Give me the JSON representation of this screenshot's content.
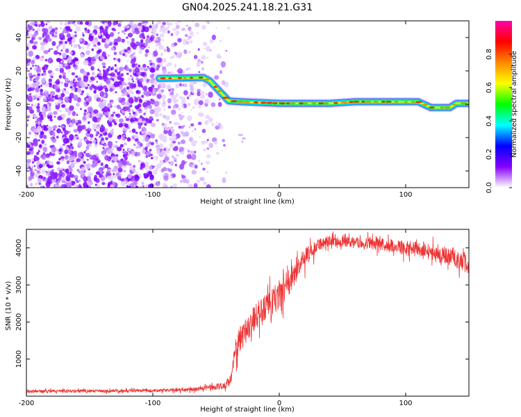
{
  "figure_title": "GN04.2025.241.18.21.G31",
  "chart_data": [
    {
      "type": "heatmap",
      "title": "GN04.2025.241.18.21.G31",
      "xlabel": "Height of straight line (km)",
      "ylabel": "Frequency (Hz)",
      "xlim": [
        -200,
        150
      ],
      "ylim": [
        -50,
        50
      ],
      "x_ticks": [
        -200,
        -100,
        0,
        100
      ],
      "x_tick_labels": [
        "-200",
        "-100",
        "0",
        "100"
      ],
      "y_ticks": [
        40,
        20,
        0,
        -20,
        -40
      ],
      "y_tick_labels": [
        "40",
        "20",
        "0",
        "-20",
        "-40"
      ],
      "noise_region_x": [
        -200,
        -50
      ],
      "ridge": [
        {
          "x": -95,
          "f": 15.5
        },
        {
          "x": -60,
          "f": 16
        },
        {
          "x": -55,
          "f": 14
        },
        {
          "x": -45,
          "f": 6
        },
        {
          "x": -40,
          "f": 2
        },
        {
          "x": -30,
          "f": 1.5
        },
        {
          "x": 0,
          "f": 0.5
        },
        {
          "x": 40,
          "f": 0.5
        },
        {
          "x": 60,
          "f": 1.5
        },
        {
          "x": 110,
          "f": 1.5
        },
        {
          "x": 120,
          "f": -2
        },
        {
          "x": 135,
          "f": -2
        },
        {
          "x": 140,
          "f": 0.5
        },
        {
          "x": 150,
          "f": 0.5
        }
      ],
      "colorbar": {
        "label": "Normalized spectral amplitude",
        "range": [
          0,
          1
        ],
        "ticks": [
          0.0,
          0.2,
          0.4,
          0.6,
          0.8
        ],
        "tick_labels": [
          "0.0",
          "0.2",
          "0.4",
          "0.6",
          "0.8"
        ],
        "colors": [
          "#ffffff",
          "#8800ff",
          "#0000ff",
          "#00ffff",
          "#00ff00",
          "#ffff00",
          "#ff8800",
          "#ff0000",
          "#ff00aa"
        ]
      }
    },
    {
      "type": "line",
      "xlabel": "Height of straight line (km)",
      "ylabel": "SNR (10 * v/v)",
      "xlim": [
        -200,
        150
      ],
      "ylim": [
        0,
        4500
      ],
      "x_ticks": [
        -200,
        -100,
        0,
        100
      ],
      "x_tick_labels": [
        "-200",
        "-100",
        "0",
        "100"
      ],
      "y_ticks": [
        1000,
        2000,
        3000,
        4000
      ],
      "y_tick_labels": [
        "1000",
        "2000",
        "3000",
        "4000"
      ],
      "line_color": "#ee3333",
      "series": [
        {
          "name": "SNR",
          "x": [
            -200,
            -150,
            -100,
            -70,
            -50,
            -42,
            -38,
            -35,
            -30,
            -25,
            -20,
            -10,
            0,
            10,
            20,
            30,
            40,
            60,
            80,
            100,
            120,
            140,
            150
          ],
          "y": [
            130,
            140,
            150,
            170,
            250,
            300,
            500,
            1200,
            1600,
            1850,
            2100,
            2400,
            2700,
            3200,
            3700,
            4050,
            4200,
            4150,
            4100,
            4000,
            3900,
            3700,
            3550
          ],
          "noise_amp": [
            60,
            60,
            60,
            70,
            100,
            150,
            300,
            500,
            500,
            500,
            550,
            550,
            550,
            500,
            400,
            250,
            200,
            200,
            250,
            300,
            300,
            350,
            400
          ]
        }
      ]
    }
  ]
}
